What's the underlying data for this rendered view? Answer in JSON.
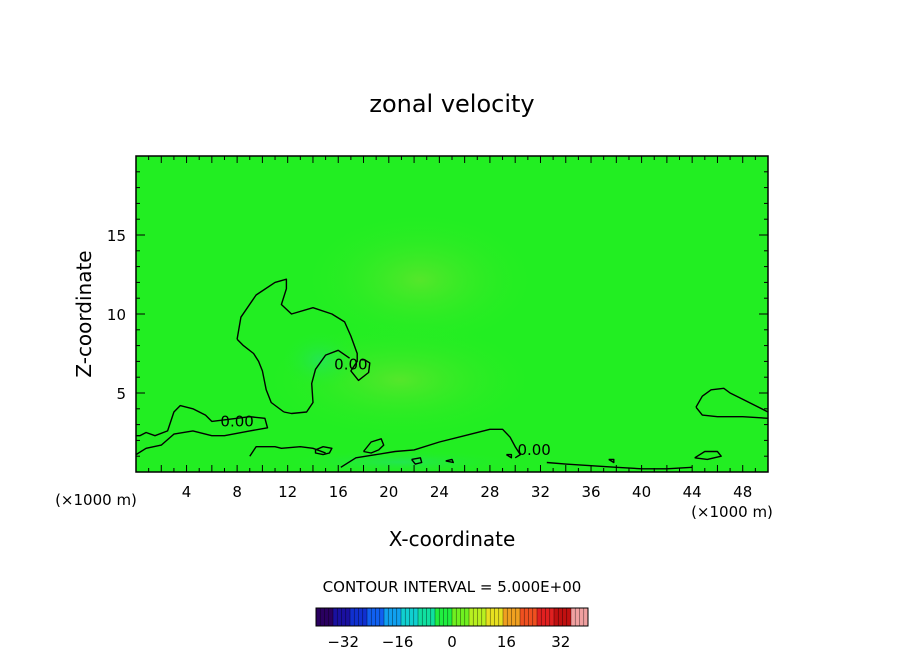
{
  "chart_data": {
    "type": "contour",
    "title": "zonal velocity",
    "xlabel": "X-coordinate",
    "ylabel": "Z-coordinate",
    "x_unit": "(×1000 m)",
    "x_unit_right": "(×1000 m)",
    "xlim": [
      0,
      50
    ],
    "ylim": [
      0,
      20
    ],
    "x_ticks": [
      4,
      8,
      12,
      16,
      20,
      24,
      28,
      32,
      36,
      40,
      44,
      48
    ],
    "y_ticks": [
      5,
      10,
      15
    ],
    "contour_interval_text": "CONTOUR INTERVAL = 5.000E+00",
    "contour_labels": [
      {
        "text": "0.00",
        "x": 8,
        "z": 3.2
      },
      {
        "text": "0.00",
        "x": 17,
        "z": 6.8
      },
      {
        "text": "0.00",
        "x": 31.5,
        "z": 1.4
      }
    ],
    "field_color": "#22ee22",
    "colorbar": {
      "min": -40,
      "max": 40,
      "ticks": [
        -32,
        -16,
        0,
        16,
        32
      ],
      "colors": [
        "#2a0060",
        "#1a10a0",
        "#1030d0",
        "#1060f0",
        "#10a0f0",
        "#10d0d0",
        "#10e0a0",
        "#20ee40",
        "#70f020",
        "#b8f020",
        "#e8e020",
        "#f0a020",
        "#f05020",
        "#e02020",
        "#c01010",
        "#f0a0a0"
      ]
    },
    "zero_contours": [
      [
        [
          9,
          1
        ],
        [
          9.5,
          1.6
        ],
        [
          11,
          1.6
        ],
        [
          11.5,
          1.5
        ],
        [
          13,
          1.6
        ],
        [
          14,
          1.5
        ],
        [
          15,
          1.2
        ]
      ],
      [
        [
          0,
          1.1
        ],
        [
          0.8,
          1.5
        ],
        [
          2,
          1.7
        ],
        [
          3,
          2.4
        ],
        [
          4.5,
          2.6
        ],
        [
          6,
          2.3
        ],
        [
          7,
          2.3
        ],
        [
          9,
          2.6
        ],
        [
          10.4,
          2.8
        ],
        [
          10.2,
          3.4
        ],
        [
          9,
          3.5
        ],
        [
          6,
          3.2
        ],
        [
          5.5,
          3.6
        ],
        [
          4.5,
          4
        ],
        [
          3.5,
          4.2
        ],
        [
          3,
          3.8
        ],
        [
          2.5,
          2.6
        ],
        [
          1.5,
          2.3
        ],
        [
          0.8,
          2.5
        ],
        [
          0.3,
          2.3
        ],
        [
          0,
          2.3
        ]
      ],
      [
        [
          8,
          8.4
        ],
        [
          8.3,
          9.8
        ],
        [
          9.5,
          11.2
        ],
        [
          11,
          12
        ],
        [
          11.9,
          12.2
        ],
        [
          11.9,
          11.6
        ],
        [
          11.5,
          10.6
        ],
        [
          12.3,
          10
        ],
        [
          14,
          10.4
        ],
        [
          15.5,
          10
        ],
        [
          16.5,
          9.5
        ],
        [
          17,
          8.6
        ],
        [
          17.5,
          7.5
        ],
        [
          17.5,
          7
        ],
        [
          17,
          6.4
        ],
        [
          17.6,
          5.8
        ],
        [
          18.4,
          6.3
        ],
        [
          18.5,
          6.9
        ],
        [
          18.1,
          7.1
        ],
        [
          17.8,
          7.1
        ]
      ],
      [
        [
          11.7,
          3.8
        ],
        [
          10.7,
          4.4
        ],
        [
          10.3,
          5.2
        ],
        [
          10,
          6.4
        ],
        [
          9.7,
          7
        ],
        [
          9.3,
          7.5
        ],
        [
          8.5,
          8
        ],
        [
          8,
          8.4
        ]
      ],
      [
        [
          11.7,
          3.8
        ],
        [
          12.3,
          3.7
        ],
        [
          13.5,
          3.8
        ],
        [
          14,
          4.4
        ],
        [
          13.9,
          5.6
        ],
        [
          14.2,
          6.5
        ],
        [
          15,
          7.4
        ],
        [
          16,
          7.7
        ],
        [
          16.9,
          7.2
        ]
      ],
      [
        [
          14.2,
          1.4
        ],
        [
          14.8,
          1.6
        ],
        [
          15.5,
          1.5
        ],
        [
          15.3,
          1.2
        ],
        [
          14.8,
          1.1
        ],
        [
          14.2,
          1.2
        ],
        [
          14.2,
          1.4
        ]
      ],
      [
        [
          18,
          1.3
        ],
        [
          18.6,
          1.9
        ],
        [
          19.4,
          2.1
        ],
        [
          19.6,
          1.7
        ],
        [
          19.2,
          1.4
        ],
        [
          18.6,
          1.2
        ],
        [
          18,
          1.3
        ]
      ],
      [
        [
          16.2,
          0.3
        ],
        [
          17.4,
          0.9
        ],
        [
          19,
          1.1
        ],
        [
          20.5,
          1.3
        ],
        [
          22,
          1.4
        ],
        [
          24,
          1.9
        ],
        [
          26,
          2.3
        ],
        [
          28,
          2.7
        ],
        [
          29,
          2.7
        ],
        [
          29.6,
          2.2
        ],
        [
          30,
          1.6
        ],
        [
          30.4,
          1.1
        ],
        [
          30,
          0.9
        ]
      ],
      [
        [
          32.5,
          0.6
        ],
        [
          34,
          0.5
        ],
        [
          36,
          0.4
        ],
        [
          38,
          0.3
        ],
        [
          40,
          0.2
        ],
        [
          42,
          0.2
        ],
        [
          44,
          0.3
        ]
      ],
      [
        [
          44.3,
          4.1
        ],
        [
          44.8,
          4.8
        ],
        [
          45.5,
          5.2
        ],
        [
          46.5,
          5.3
        ],
        [
          47,
          5
        ],
        [
          48,
          4.6
        ],
        [
          49,
          4.2
        ],
        [
          50,
          3.8
        ]
      ],
      [
        [
          44.3,
          4.1
        ],
        [
          44.8,
          3.6
        ],
        [
          46,
          3.5
        ],
        [
          48,
          3.5
        ],
        [
          50,
          3.4
        ]
      ],
      [
        [
          44.2,
          0.9
        ],
        [
          45,
          1.3
        ],
        [
          46,
          1.3
        ],
        [
          46.3,
          1
        ],
        [
          45.2,
          0.8
        ],
        [
          44.2,
          0.9
        ]
      ],
      [
        [
          21.8,
          0.8
        ],
        [
          22.5,
          0.9
        ],
        [
          22.6,
          0.6
        ],
        [
          22.1,
          0.5
        ],
        [
          21.8,
          0.8
        ]
      ],
      [
        [
          24.5,
          0.7
        ],
        [
          25,
          0.8
        ],
        [
          25.1,
          0.6
        ],
        [
          24.5,
          0.7
        ]
      ],
      [
        [
          37.4,
          0.8
        ],
        [
          37.8,
          0.8
        ],
        [
          37.8,
          0.6
        ],
        [
          37.4,
          0.8
        ]
      ],
      [
        [
          29.3,
          1.1
        ],
        [
          29.7,
          1.1
        ],
        [
          29.7,
          0.9
        ],
        [
          29.3,
          1.1
        ]
      ]
    ]
  }
}
